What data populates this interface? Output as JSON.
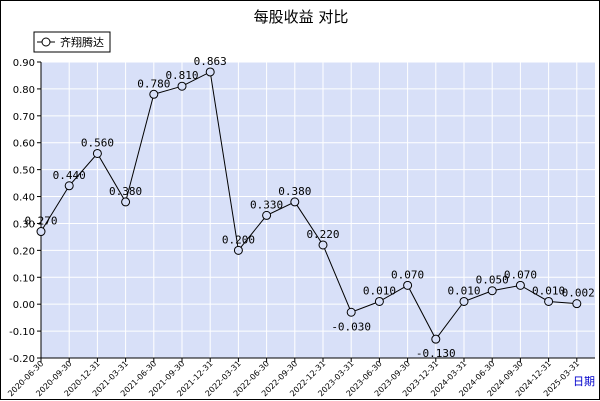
{
  "chart_data": {
    "type": "line",
    "title": "每股收益  对比",
    "corner_label": "日期",
    "legend": {
      "placement": "top-left"
    },
    "colors": {
      "plot_bg": "#d8e0f8",
      "grid": "#ffffff",
      "line": "#000000",
      "marker_fill": "#d8e0f8",
      "corner_label": "#0000cc"
    },
    "grid": true,
    "ylim": [
      -0.2,
      0.9
    ],
    "yticks": [
      "0.90",
      "0.80",
      "0.70",
      "0.60",
      "0.50",
      "0.40",
      "0.30",
      "0.20",
      "0.10",
      "0.00",
      "-0.10",
      "-0.20"
    ],
    "categories": [
      "2020-06-30",
      "2020-09-30",
      "2020-12-31",
      "2021-03-31",
      "2021-06-30",
      "2021-09-30",
      "2021-12-31",
      "2022-03-31",
      "2022-06-30",
      "2022-09-30",
      "2022-12-31",
      "2023-03-31",
      "2023-06-30",
      "2023-09-30",
      "2023-12-31",
      "2024-03-31",
      "2024-06-30",
      "2024-09-30",
      "2024-12-31",
      "2025-03-31"
    ],
    "series": [
      {
        "name": "齐翔腾达",
        "values": [
          0.27,
          0.44,
          0.56,
          0.38,
          0.78,
          0.81,
          0.863,
          0.2,
          0.33,
          0.38,
          0.22,
          -0.03,
          0.01,
          0.07,
          -0.13,
          0.01,
          0.05,
          0.07,
          0.01,
          0.002
        ],
        "labels": [
          "0.270",
          "0.440",
          "0.560",
          "0.380",
          "0.780",
          "0.810",
          "0.863",
          "0.200",
          "0.330",
          "0.380",
          "0.220",
          "-0.030",
          "0.010",
          "0.070",
          "-0.130",
          "0.010",
          "0.050",
          "0.070",
          "0.010",
          "0.002"
        ]
      }
    ]
  }
}
